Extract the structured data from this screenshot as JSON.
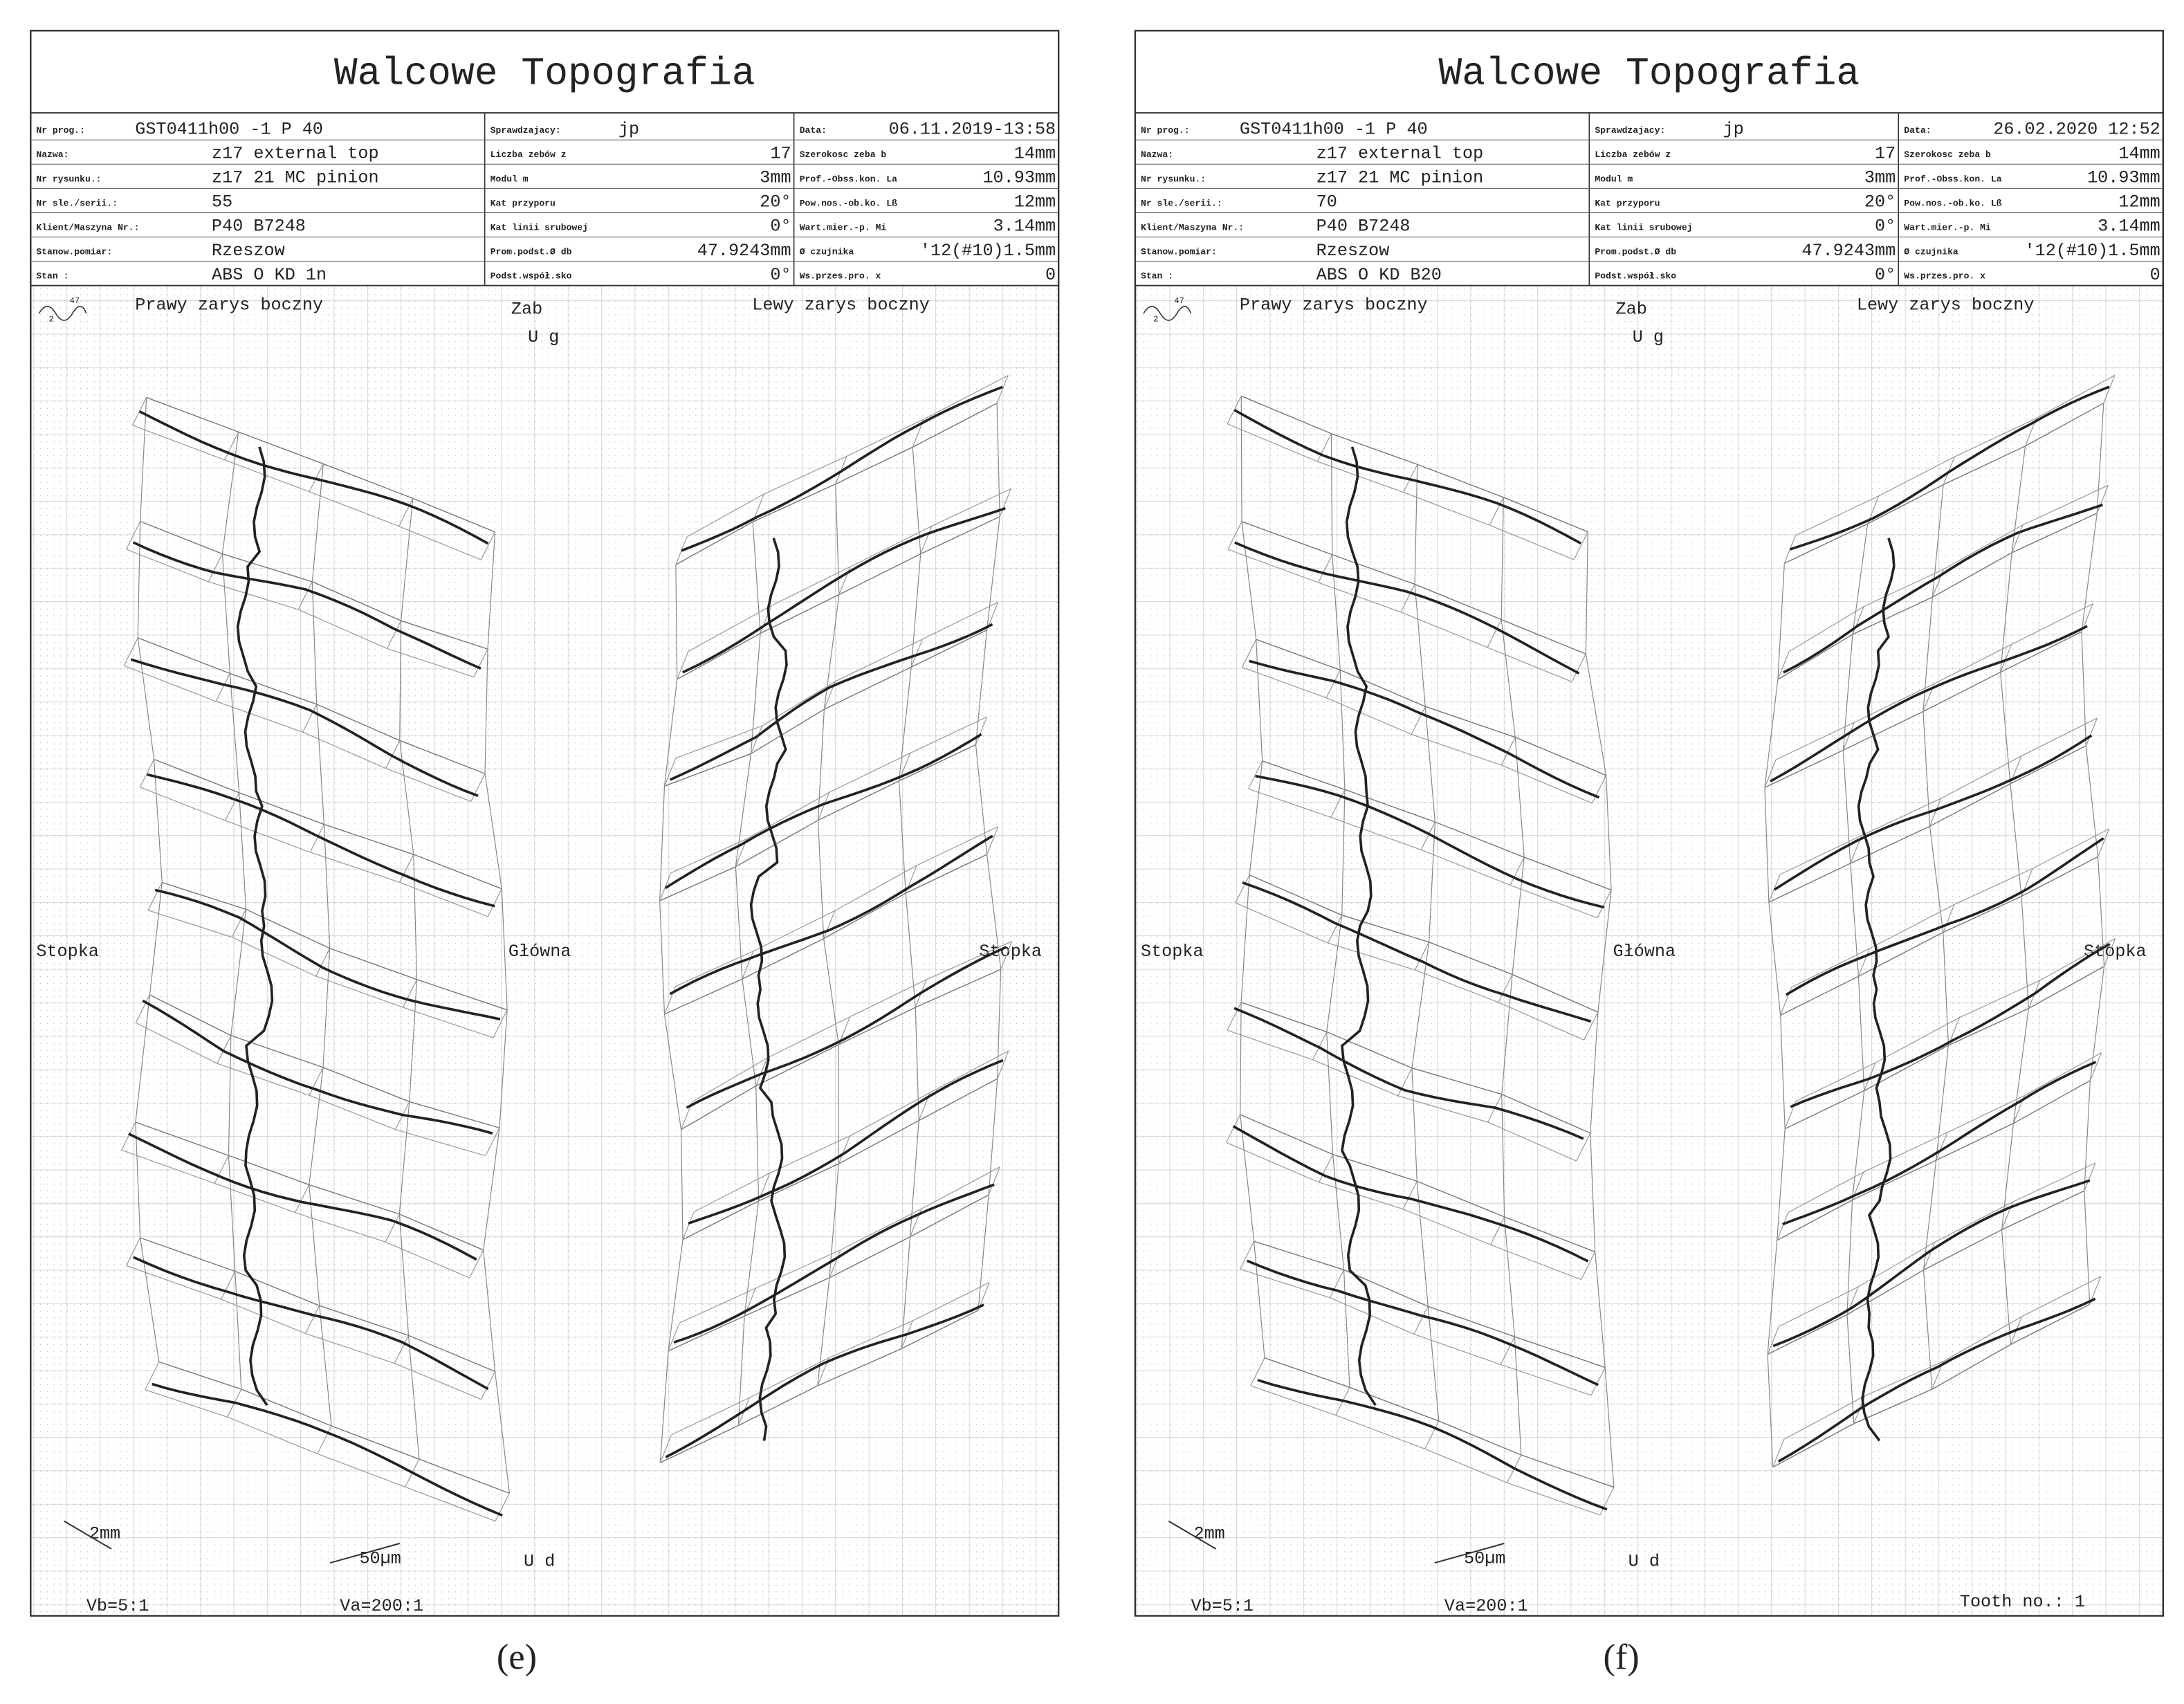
{
  "panels": [
    {
      "title": "Walcowe Topografia",
      "caption": "(e)",
      "fields": [
        [
          [
            "Nr prog.:",
            "GST0411h00 -1    P 40"
          ],
          [
            "Sprawdzajacy:",
            "jp"
          ],
          [
            "Data:",
            "06.11.2019-13:58"
          ]
        ],
        [
          [
            "Nazwa:",
            "z17 external top"
          ],
          [
            "Liczba zebów z",
            "17"
          ],
          [
            "Szerokosc zeba b",
            "14mm"
          ]
        ],
        [
          [
            "Nr rysunku.:",
            "z17 21 MC pinion"
          ],
          [
            "Modul m",
            "3mm"
          ],
          [
            "Prof.-Obss.kon. La",
            "10.93mm"
          ]
        ],
        [
          [
            "Nr sle./serii.:",
            "55"
          ],
          [
            "Kat przyporu",
            "20°"
          ],
          [
            "Pow.nos.-ob.ko. Lß",
            "12mm"
          ]
        ],
        [
          [
            "Klient/Maszyna Nr.:",
            "P40 B7248"
          ],
          [
            "Kat linii srubowej",
            "0°"
          ],
          [
            "Wart.mier.-p. Mi",
            "3.14mm"
          ]
        ],
        [
          [
            "Stanow.pomiar:",
            "Rzeszow"
          ],
          [
            "Prom.podst.Ø db",
            "47.9243mm"
          ],
          [
            "Ø czujnika",
            "'12(#10)1.5mm"
          ]
        ],
        [
          [
            "Stan :",
            "ABS O KD 1n"
          ],
          [
            "Podst.współ.sko",
            "0°"
          ],
          [
            "Ws.przes.pro. x",
            "0"
          ]
        ]
      ],
      "icon": [
        "47",
        "2"
      ],
      "labels": {
        "right_flank": "Prawy zarys boczny",
        "tooth": "Zab",
        "top": "U g",
        "left_flank": "Lewy zarys boczny",
        "root_left": "Stopka",
        "main": "Główna",
        "root_right": "Stopka",
        "scale_mm": "2mm",
        "scale_um": "50µm",
        "bottom": "U d",
        "vb": "Vb=5:1",
        "va": "Va=200:1"
      }
    },
    {
      "title": "Walcowe Topografia",
      "caption": "(f)",
      "fields": [
        [
          [
            "Nr prog.:",
            "GST0411h00 -1    P 40"
          ],
          [
            "Sprawdzajacy:",
            "jp"
          ],
          [
            "Data:",
            "26.02.2020 12:52"
          ]
        ],
        [
          [
            "Nazwa:",
            "z17 external top"
          ],
          [
            "Liczba zebów z",
            "17"
          ],
          [
            "Szerokosc zeba b",
            "14mm"
          ]
        ],
        [
          [
            "Nr rysunku.:",
            "z17 21 MC pinion"
          ],
          [
            "Modul m",
            "3mm"
          ],
          [
            "Prof.-Obss.kon. La",
            "10.93mm"
          ]
        ],
        [
          [
            "Nr sle./serii.:",
            "70"
          ],
          [
            "Kat przyporu",
            "20°"
          ],
          [
            "Pow.nos.-ob.ko. Lß",
            "12mm"
          ]
        ],
        [
          [
            "Klient/Maszyna Nr.:",
            "P40 B7248"
          ],
          [
            "Kat linii srubowej",
            "0°"
          ],
          [
            "Wart.mier.-p. Mi",
            "3.14mm"
          ]
        ],
        [
          [
            "Stanow.pomiar:",
            "Rzeszow"
          ],
          [
            "Prom.podst.Ø db",
            "47.9243mm"
          ],
          [
            "Ø czujnika",
            "'12(#10)1.5mm"
          ]
        ],
        [
          [
            "Stan :",
            "ABS O KD B20"
          ],
          [
            "Podst.współ.sko",
            "0°"
          ],
          [
            "Ws.przes.pro. x",
            "0"
          ]
        ]
      ],
      "icon": [
        "47",
        "2"
      ],
      "labels": {
        "right_flank": "Prawy zarys boczny",
        "tooth": "Zab",
        "top": "U g",
        "left_flank": "Lewy zarys boczny",
        "root_left": "Stopka",
        "main": "Główna",
        "root_right": "Stopka",
        "scale_mm": "2mm",
        "scale_um": "50µm",
        "bottom": "U d",
        "vb": "Vb=5:1",
        "va": "Va=200:1",
        "tooth_no": "Tooth no.: 1"
      }
    }
  ]
}
